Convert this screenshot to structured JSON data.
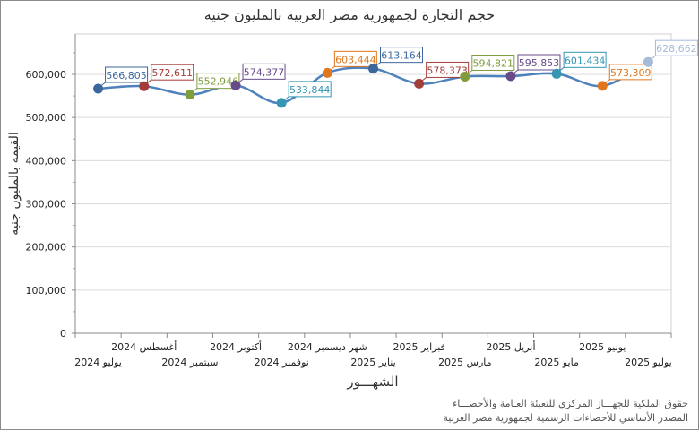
{
  "chart_data": {
    "type": "line",
    "title": "حجم التجارة لجمهورية مصر العربية بالمليون جنيه",
    "xlabel": "الشهـــور",
    "ylabel": "القيمه بالمليون جنيه",
    "categories": [
      "يوليو 2024",
      "أغسطس 2024",
      "سبتمبر 2024",
      "أكتوبر 2024",
      "نوفمبر 2024",
      "شهر ديسمبر 2024",
      "يناير 2025",
      "فبراير 2025",
      "مارس 2025",
      "أبريل 2025",
      "مايو 2025",
      "يونيو 2025",
      "يوليو 2025"
    ],
    "values": [
      566805,
      572611,
      552946,
      574377,
      533844,
      603444,
      613164,
      578373,
      594821,
      595853,
      601434,
      573309,
      628662
    ],
    "data_labels": [
      "566,805",
      "572,611",
      "552,946",
      "574,377",
      "533,844",
      "603,444",
      "613,164",
      "578,373",
      "594,821",
      "595,853",
      "601,434",
      "573,309",
      "628,662"
    ],
    "point_colors": [
      "#3b679c",
      "#a23d3a",
      "#7f9d3d",
      "#674c89",
      "#3597b3",
      "#e0771d",
      "#3b679c",
      "#a23d3a",
      "#7f9d3d",
      "#674c89",
      "#3597b3",
      "#e0771d",
      "#a5bbd8"
    ],
    "line_color": "#4f81bd",
    "ylim": [
      0,
      700000
    ],
    "yticks": [
      0,
      100000,
      200000,
      300000,
      400000,
      500000,
      600000
    ],
    "ytick_labels": [
      "0",
      "100,000",
      "200,000",
      "300,000",
      "400,000",
      "500,000",
      "600,000"
    ],
    "grid": true,
    "smooth": true
  },
  "footer": {
    "line1": "حقوق الملكية للجهـــاز المركزي للتعبئة العـامة والأحصـــاء",
    "line2": "المصدر الأساسي للأحصاءات الرسمية لجمهورية مصر العربية"
  }
}
